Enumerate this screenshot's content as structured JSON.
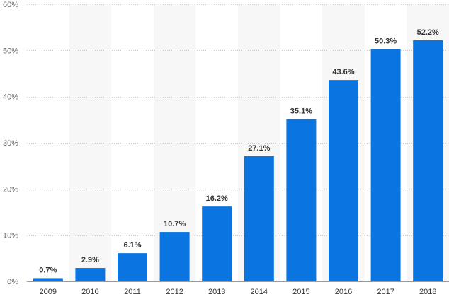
{
  "chart_data": {
    "type": "bar",
    "title": "",
    "xlabel": "",
    "ylabel": "",
    "categories": [
      "2009",
      "2010",
      "2011",
      "2012",
      "2013",
      "2014",
      "2015",
      "2016",
      "2017",
      "2018"
    ],
    "values": [
      0.7,
      2.9,
      6.1,
      10.7,
      16.2,
      27.1,
      35.1,
      43.6,
      50.3,
      52.2
    ],
    "data_labels": [
      "0.7%",
      "2.9%",
      "6.1%",
      "10.7%",
      "16.2%",
      "27.1%",
      "35.1%",
      "43.6%",
      "50.3%",
      "52.2%"
    ],
    "ylim": [
      0,
      60
    ],
    "yticks": [
      0,
      10,
      20,
      30,
      40,
      50,
      60
    ],
    "ytick_labels": [
      "0%",
      "10%",
      "20%",
      "30%",
      "40%",
      "50%",
      "60%"
    ],
    "grid": true,
    "legend": "none",
    "colors": {
      "bar": "#0a74e0",
      "band": "#f7f7f7",
      "grid": "#c8c8c8",
      "axis": "#999999"
    }
  }
}
